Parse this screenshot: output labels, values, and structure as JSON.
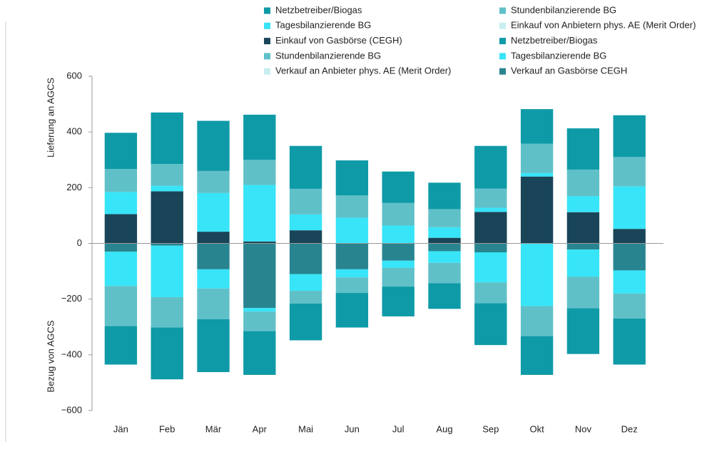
{
  "chart_data": {
    "type": "bar",
    "stacked": true,
    "axis_labels": [
      "Lieferung an AGCS",
      "Bezug von AGCS"
    ],
    "categories": [
      "Jän",
      "Feb",
      "Mär",
      "Apr",
      "Mai",
      "Jun",
      "Jul",
      "Aug",
      "Sep",
      "Okt",
      "Nov",
      "Dez"
    ],
    "series": [
      {
        "name": "Netzbetreiber/Biogas",
        "color": "#0e9aa7",
        "values": [
          130,
          185,
          180,
          162,
          154,
          126,
          113,
          95,
          153,
          124,
          148,
          150
        ]
      },
      {
        "name": "Tagesbilanzierende BG",
        "color": "#38e4f7",
        "values": [
          80,
          20,
          139,
          203,
          57,
          92,
          64,
          38,
          15,
          13,
          58,
          153
        ]
      },
      {
        "name": "Einkauf von Gasbörse (CEGH)",
        "color": "#1a4558",
        "values": [
          105,
          187,
          42,
          7,
          47,
          0,
          0,
          20,
          113,
          240,
          112,
          52
        ]
      },
      {
        "name": "Stundenbilanzierende BG",
        "color": "#60c0c8",
        "values": [
          82,
          78,
          79,
          90,
          92,
          80,
          81,
          65,
          69,
          105,
          95,
          105
        ]
      },
      {
        "name": "Verkauf an Anbieter phys. AE (Merit Order)",
        "color": "#c8eef0",
        "values": [
          0,
          0,
          0,
          0,
          0,
          0,
          0,
          0,
          0,
          0,
          0,
          0
        ]
      },
      {
        "name": "Stundenbilanzierende BG",
        "color": "#60c0c8",
        "values": [
          -144,
          -109,
          -110,
          -70,
          -46,
          -56,
          -67,
          -73,
          -75,
          -108,
          -113,
          -90
        ]
      },
      {
        "name": "Einkauf von Anbietern phys. AE (Merit Order)",
        "color": "#c8eef0",
        "values": [
          0,
          0,
          0,
          0,
          0,
          0,
          0,
          0,
          0,
          0,
          0,
          0
        ]
      },
      {
        "name": "Netzbetreiber/Biogas",
        "color": "#0e9aa7",
        "values": [
          -138,
          -186,
          -190,
          -157,
          -132,
          -124,
          -107,
          -92,
          -150,
          -139,
          -164,
          -165
        ]
      },
      {
        "name": "Tagesbilanzierende BG",
        "color": "#38e4f7",
        "values": [
          -123,
          -185,
          -69,
          -13,
          -60,
          -29,
          -26,
          -42,
          -108,
          -225,
          -98,
          -83
        ]
      },
      {
        "name": "Verkauf an Gasbörse CEGH",
        "color": "#288590",
        "values": [
          -30,
          -8,
          -93,
          -232,
          -110,
          -93,
          -62,
          -28,
          -32,
          0,
          -22,
          -97
        ]
      }
    ],
    "ylim": [
      -600,
      600
    ],
    "yticks": [
      600,
      400,
      200,
      0,
      {
        "value": -200,
        "label": "−200"
      },
      {
        "value": -400,
        "label": "−400"
      },
      {
        "value": -600,
        "label": "−600"
      }
    ]
  }
}
